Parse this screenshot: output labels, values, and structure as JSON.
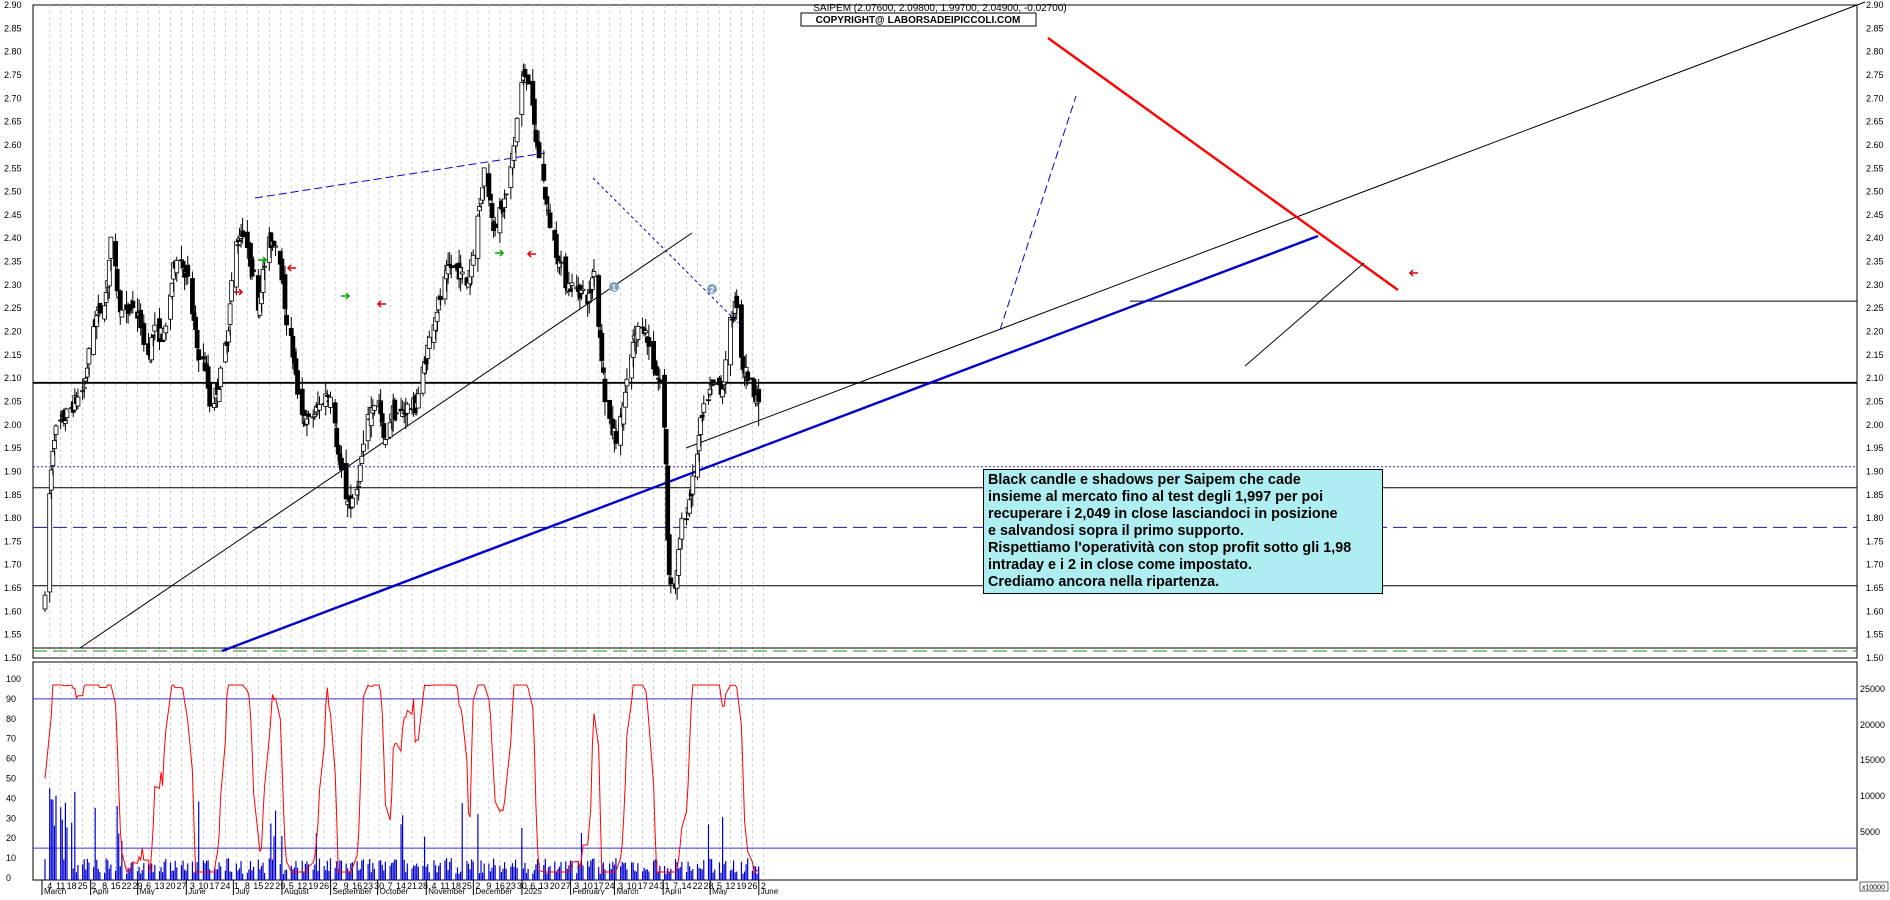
{
  "chart_data": {
    "type": "candlestick",
    "header": "SAIPEM (2.07600, 2.09800, 1.99700, 2.04900, -0.02700)",
    "copyright": "COPYRIGHT@ LABORSADEIPICCOLI.COM",
    "ticker": "SAIPEM",
    "last_bar": {
      "open": 2.076,
      "high": 2.098,
      "low": 1.997,
      "close": 2.049,
      "change": -0.027
    },
    "price_axis": {
      "min": 1.5,
      "max": 2.9,
      "step": 0.05,
      "ticks": [
        "1.50",
        "1.55",
        "1.60",
        "1.65",
        "1.70",
        "1.75",
        "1.80",
        "1.85",
        "1.90",
        "1.95",
        "2.00",
        "2.05",
        "2.10",
        "2.15",
        "2.20",
        "2.25",
        "2.30",
        "2.35",
        "2.40",
        "2.45",
        "2.50",
        "2.55",
        "2.60",
        "2.65",
        "2.70",
        "2.75",
        "2.80",
        "2.85",
        "2.90"
      ]
    },
    "oscillator_axis": {
      "min": 0,
      "max": 100,
      "ticks": [
        "0",
        "10",
        "20",
        "30",
        "40",
        "50",
        "60",
        "70",
        "80",
        "90",
        "100"
      ]
    },
    "volume_axis": {
      "ticks": [
        "5000",
        "10000",
        "15000",
        "20000",
        "25000"
      ],
      "unit_label": "x10000"
    },
    "x_axis": {
      "months": [
        "March",
        "April",
        "May",
        "June",
        "July",
        "August",
        "September",
        "October",
        "November",
        "December",
        "2025",
        "February",
        "March",
        "April",
        "May",
        "June"
      ],
      "day_labels": [
        "4",
        "11",
        "18",
        "25",
        "2",
        "8",
        "15",
        "22",
        "29",
        "6",
        "13",
        "20",
        "27",
        "3",
        "10",
        "17",
        "24",
        "1",
        "8",
        "15",
        "22",
        "29",
        "5",
        "12",
        "19",
        "26",
        "2",
        "9",
        "16",
        "23",
        "30",
        "7",
        "14",
        "21",
        "28",
        "4",
        "11",
        "18",
        "25",
        "2",
        "9",
        "16",
        "23",
        "30",
        "6",
        "13",
        "20",
        "27",
        "3",
        "10",
        "17",
        "24",
        "3",
        "10",
        "17",
        "24",
        "31",
        "7",
        "14",
        "22",
        "28",
        "5",
        "12",
        "19",
        "26",
        "2"
      ]
    },
    "horizontal_levels": [
      {
        "price": 2.09,
        "style": "solid",
        "color": "#000000"
      },
      {
        "price": 1.91,
        "style": "dotted",
        "color": "#2222cc"
      },
      {
        "price": 1.865,
        "style": "solid",
        "color": "#000000"
      },
      {
        "price": 1.78,
        "style": "dashed",
        "color": "#1a1a8c"
      },
      {
        "price": 1.655,
        "style": "solid",
        "color": "#000000"
      },
      {
        "price": 1.515,
        "style": "dashed",
        "color": "#1a8c1a"
      },
      {
        "price": 2.265,
        "style": "solid",
        "color": "#000000",
        "from_day": 1130
      }
    ],
    "series": [
      {
        "name": "price",
        "kind": "candles",
        "values": "generated_daily_ohlc_2024-03_to_2025-05"
      },
      {
        "name": "oscillator",
        "kind": "line",
        "color": "#ff0000"
      },
      {
        "name": "volume",
        "kind": "bars",
        "color": "#0000cc"
      }
    ],
    "oscillator_levels": [
      90,
      15
    ],
    "trend_colors": {
      "resistance": "#ff0000",
      "support": "#0000cc",
      "channel": "#000000"
    },
    "markers": [
      {
        "label": "1",
        "color": "#7f9fbf"
      },
      {
        "label": "2",
        "color": "#7f9fbf"
      }
    ],
    "grid": true
  },
  "annotation": {
    "lines": [
      "Black candle e shadows per Saipem che cade",
      "insieme al mercato fino al test degli 1,997 per poi",
      "recuperare i 2,049 in close lasciandoci in posizione",
      "e salvandosi sopra il primo supporto.",
      "Rispettiamo l'operatività con stop profit sotto gli 1,98",
      "intraday e i 2 in close come impostato.",
      "Crediamo ancora nella ripartenza."
    ]
  }
}
